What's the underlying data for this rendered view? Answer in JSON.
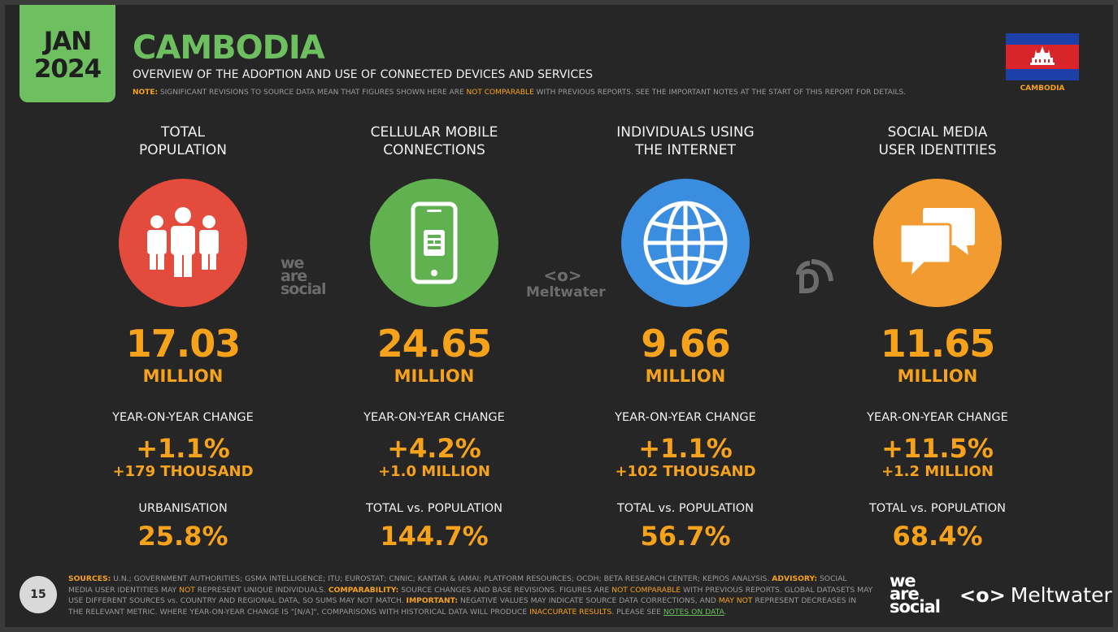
{
  "header": {
    "month": "JAN",
    "year": "2024",
    "title": "CAMBODIA",
    "subtitle": "OVERVIEW OF THE ADOPTION AND USE OF CONNECTED DEVICES AND SERVICES",
    "note_label": "NOTE:",
    "note_text_1": " SIGNIFICANT REVISIONS TO SOURCE DATA MEAN THAT FIGURES SHOWN HERE ARE ",
    "note_highlight": "NOT COMPARABLE",
    "note_text_2": " WITH PREVIOUS REPORTS. SEE THE IMPORTANT NOTES AT THE START OF THIS REPORT FOR DETAILS.",
    "flag_label": "CAMBODIA"
  },
  "columns": [
    {
      "heading_1": "TOTAL",
      "heading_2": "POPULATION",
      "icon": "people-icon",
      "color": "#e34b3c",
      "value": "17.03",
      "unit": "MILLION",
      "change_label": "YEAR-ON-YEAR CHANGE",
      "change_pct": "+1.1%",
      "change_abs": "+179 THOUSAND",
      "footer_label": "URBANISATION",
      "footer_value": "25.8%"
    },
    {
      "heading_1": "CELLULAR MOBILE",
      "heading_2": "CONNECTIONS",
      "icon": "mobile-phone-icon",
      "color": "#5fb24f",
      "value": "24.65",
      "unit": "MILLION",
      "change_label": "YEAR-ON-YEAR CHANGE",
      "change_pct": "+4.2%",
      "change_abs": "+1.0 MILLION",
      "footer_label": "TOTAL vs. POPULATION",
      "footer_value": "144.7%"
    },
    {
      "heading_1": "INDIVIDUALS USING",
      "heading_2": "THE INTERNET",
      "icon": "globe-icon",
      "color": "#3b8de0",
      "value": "9.66",
      "unit": "MILLION",
      "change_label": "YEAR-ON-YEAR CHANGE",
      "change_pct": "+1.1%",
      "change_abs": "+102 THOUSAND",
      "footer_label": "TOTAL vs. POPULATION",
      "footer_value": "56.7%"
    },
    {
      "heading_1": "SOCIAL MEDIA",
      "heading_2": "USER IDENTITIES",
      "icon": "chat-bubbles-icon",
      "color": "#f29b30",
      "value": "11.65",
      "unit": "MILLION",
      "change_label": "YEAR-ON-YEAR CHANGE",
      "change_pct": "+11.5%",
      "change_abs": "+1.2 MILLION",
      "footer_label": "TOTAL vs. POPULATION",
      "footer_value": "68.4%"
    }
  ],
  "logos": {
    "was_1": "we",
    "was_2": "are",
    "was_3": "social",
    "meltwater": "Meltwater"
  },
  "footer": {
    "page_number": "15",
    "sources_label": "SOURCES:",
    "sources_text": " U.N.; GOVERNMENT AUTHORITIES; GSMA INTELLIGENCE; ITU; EUROSTAT; CNNIC; KANTAR & IAMAI; PLATFORM RESOURCES; OCDH; BETA RESEARCH CENTER; KEPIOS ANALYSIS. ",
    "advisory_label": "ADVISORY:",
    "advisory_text_1": " SOCIAL MEDIA USER IDENTITIES MAY ",
    "advisory_not": "NOT",
    "advisory_text_2": " REPRESENT UNIQUE INDIVIDUALS. ",
    "comparability_label": "COMPARABILITY:",
    "comparability_text_1": " SOURCE CHANGES AND BASE REVISIONS. FIGURES ARE ",
    "comparability_hl": "NOT COMPARABLE",
    "comparability_text_2": " WITH PREVIOUS REPORTS. GLOBAL DATASETS MAY USE DIFFERENT SOURCES vs. COUNTRY AND REGIONAL DATA, SO SUMS MAY NOT MATCH. ",
    "important_label": "IMPORTANT:",
    "important_text_1": " NEGATIVE VALUES MAY INDICATE SOURCE DATA CORRECTIONS, AND ",
    "important_hl": "MAY NOT",
    "important_text_2": " REPRESENT DECREASES IN THE RELEVANT METRIC. WHERE YEAR-ON-YEAR CHANGE IS \"[N/A]\", COMPARISONS WITH HISTORICAL DATA WILL PRODUCE ",
    "important_hl2": "INACCURATE RESULTS",
    "important_text_3": ". PLEASE SEE ",
    "notes_link": "NOTES ON DATA",
    "important_text_4": "."
  }
}
